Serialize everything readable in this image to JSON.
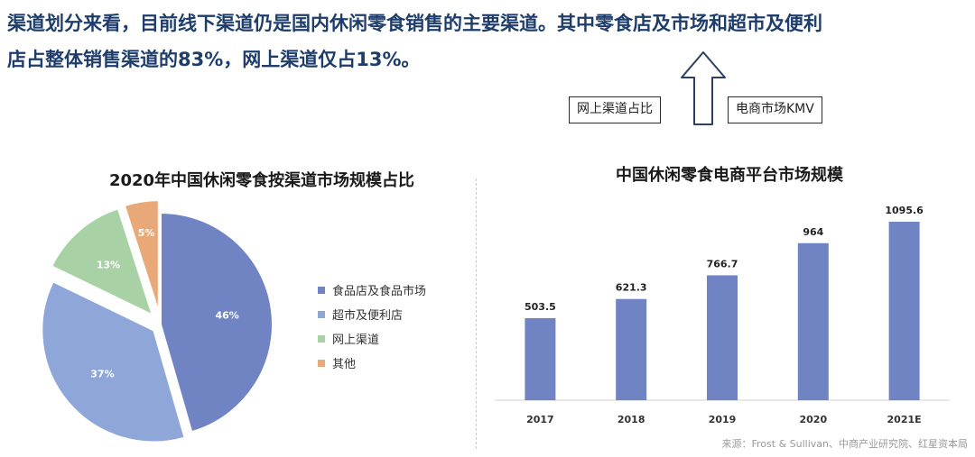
{
  "headline": {
    "line1": "渠道划分来看，目前线下渠道仍是国内休闲零食销售的主要渠道。其中零食店及市场和超市及便利",
    "line2": "店占整体销售渠道的83%，网上渠道仅占13%。"
  },
  "annotation": {
    "left_tag": "网上渠道占比",
    "right_tag": "电商市场KMV",
    "arrow_icon": "up-hollow-arrow-icon"
  },
  "colors": {
    "headline": "#1f3d6b",
    "bar": "#7083c3",
    "slice_food_store": "#7083c3",
    "slice_supermarket": "#8fa6d8",
    "slice_online": "#a9d1a6",
    "slice_other": "#e9a877"
  },
  "source_note": "来源：Frost & Sullivan、中商产业研究院、红星资本局",
  "chart_data": [
    {
      "type": "pie",
      "title": "2020年中国休闲零食按渠道市场规模占比",
      "legend_position": "right",
      "slices": [
        {
          "name": "食品店及食品市场",
          "value": 46,
          "label": "46%",
          "color": "#7083c3"
        },
        {
          "name": "超市及便利店",
          "value": 37,
          "label": "37%",
          "color": "#8fa6d8"
        },
        {
          "name": "网上渠道",
          "value": 13,
          "label": "13%",
          "color": "#a9d1a6"
        },
        {
          "name": "其他",
          "value": 5,
          "label": "5%",
          "color": "#e9a877"
        }
      ]
    },
    {
      "type": "bar",
      "title": "中国休闲零食电商平台市场规模",
      "categories": [
        "2017",
        "2018",
        "2019",
        "2020",
        "2021E"
      ],
      "values": [
        503.5,
        621.3,
        766.7,
        964,
        1095.6
      ],
      "value_labels": [
        "503.5",
        "621.3",
        "766.7",
        "964",
        "1095.6"
      ],
      "xlabel": "",
      "ylabel": "",
      "ylim": [
        0,
        1095.6
      ],
      "grid": false,
      "color": "#7083c3"
    }
  ]
}
